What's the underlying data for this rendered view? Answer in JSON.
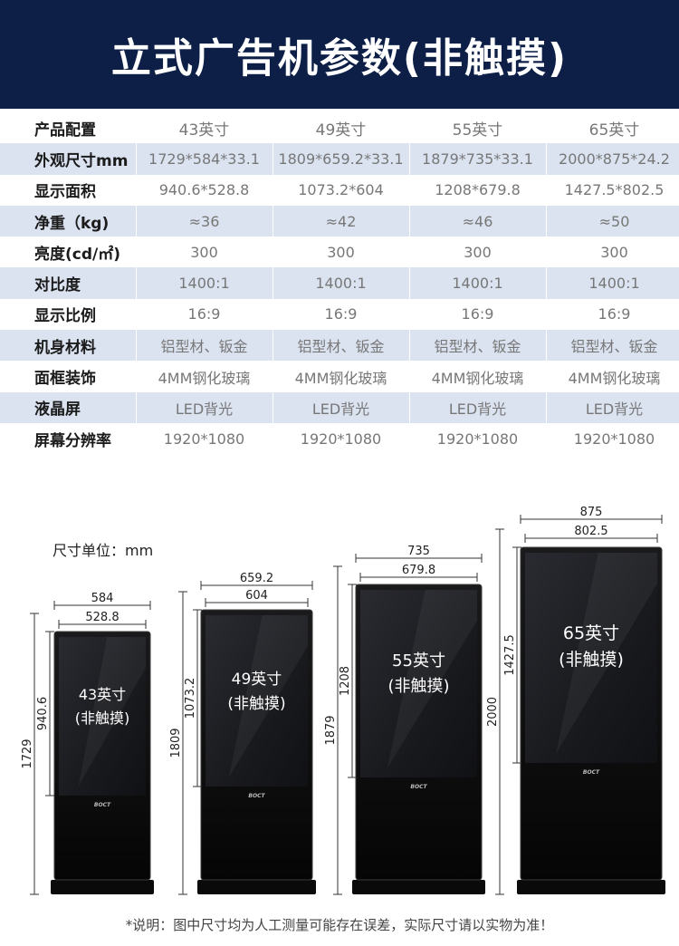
{
  "title": "立式广告机参数(非触摸)",
  "table": {
    "header_label": "产品配置",
    "models": [
      "43英寸",
      "49英寸",
      "55英寸",
      "65英寸"
    ],
    "rows": [
      {
        "label": "外观尺寸mm",
        "values": [
          "1729*584*33.1",
          "1809*659.2*33.1",
          "1879*735*33.1",
          "2000*875*24.2"
        ]
      },
      {
        "label": "显示面积",
        "values": [
          "940.6*528.8",
          "1073.2*604",
          "1208*679.8",
          "1427.5*802.5"
        ]
      },
      {
        "label": "净重（kg)",
        "values": [
          "≈36",
          "≈42",
          "≈46",
          "≈50"
        ]
      },
      {
        "label": "亮度(cd/㎡)",
        "values": [
          "300",
          "300",
          "300",
          "300"
        ]
      },
      {
        "label": "对比度",
        "values": [
          "1400:1",
          "1400:1",
          "1400:1",
          "1400:1"
        ]
      },
      {
        "label": "显示比例",
        "values": [
          "16:9",
          "16:9",
          "16:9",
          "16:9"
        ]
      },
      {
        "label": "机身材料",
        "values": [
          "铝型材、钣金",
          "铝型材、钣金",
          "铝型材、钣金",
          "铝型材、钣金"
        ]
      },
      {
        "label": "面框装饰",
        "values": [
          "4MM钢化玻璃",
          "4MM钢化玻璃",
          "4MM钢化玻璃",
          "4MM钢化玻璃"
        ]
      },
      {
        "label": "液晶屏",
        "values": [
          "LED背光",
          "LED背光",
          "LED背光",
          "LED背光"
        ]
      },
      {
        "label": "屏幕分辨率",
        "values": [
          "1920*1080",
          "1920*1080",
          "1920*1080",
          "1920*1080"
        ]
      }
    ]
  },
  "unit_note": "尺寸单位：mm",
  "machines": [
    {
      "size_label": "43英寸",
      "touch_label": "(非触摸)",
      "total_width": "584",
      "screen_width": "528.8",
      "total_height": "1729",
      "screen_height": "940.6",
      "brand": "BOCT"
    },
    {
      "size_label": "49英寸",
      "touch_label": "(非触摸)",
      "total_width": "659.2",
      "screen_width": "604",
      "total_height": "1809",
      "screen_height": "1073.2",
      "brand": "BOCT"
    },
    {
      "size_label": "55英寸",
      "touch_label": "(非触摸)",
      "total_width": "735",
      "screen_width": "679.8",
      "total_height": "1879",
      "screen_height": "1208",
      "brand": "BOCT"
    },
    {
      "size_label": "65英寸",
      "touch_label": "(非触摸)",
      "total_width": "875",
      "screen_width": "802.5",
      "total_height": "2000",
      "screen_height": "1427.5",
      "brand": "BOCT"
    }
  ],
  "footnote": "*说明：图中尺寸均为人工测量可能存在误差，实际尺寸请以实物为准！",
  "colors": {
    "header_bg": "#0d1f47",
    "row_alt": "#dbe3f1",
    "screen": "#1a1b1f",
    "body": "#0b0b0c"
  }
}
